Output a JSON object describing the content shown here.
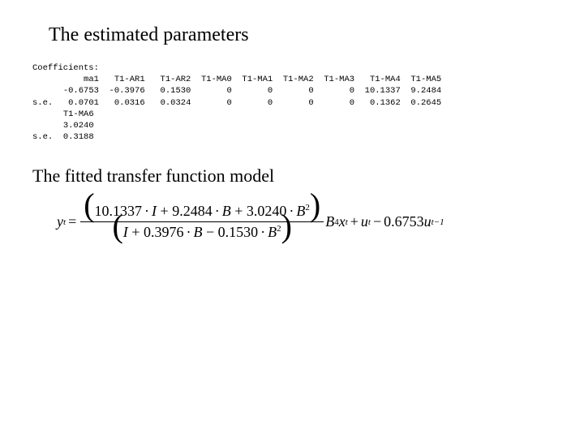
{
  "title": "The estimated parameters",
  "coef": {
    "label": "Coefficients:",
    "headers": [
      "ma1",
      "T1-AR1",
      "T1-AR2",
      "T1-MA0",
      "T1-MA1",
      "T1-MA2",
      "T1-MA3",
      "T1-MA4",
      "T1-MA5"
    ],
    "row1_label": "",
    "row1": [
      "-0.6753",
      "-0.3976",
      "0.1530",
      "0",
      "0",
      "0",
      "0",
      "10.1337",
      "9.2484"
    ],
    "se_label": "s.e.",
    "row2": [
      "0.0701",
      "0.0316",
      "0.0324",
      "0",
      "0",
      "0",
      "0",
      "0.1362",
      "0.2645"
    ],
    "extra_header": "T1-MA6",
    "extra_val": "3.0240",
    "extra_se": "0.3188"
  },
  "subtitle": "The fitted transfer function model",
  "eq": {
    "lhs_var": "y",
    "lhs_sub": "t",
    "eqsign": "=",
    "num_c1": "10.1337",
    "num_I": "I",
    "num_plus1": "+",
    "num_c2": "9.2484",
    "num_B": "B",
    "num_plus2": "+",
    "num_c3": "3.0240",
    "num_B2": "B",
    "num_sup2": "2",
    "den_I": "I",
    "den_plus1": "+",
    "den_c1": "0.3976",
    "den_B": "B",
    "den_minus": "−",
    "den_c2": "0.1530",
    "den_B2": "B",
    "den_sup2": "2",
    "post_B": "B",
    "post_sup4": "4",
    "post_x": "x",
    "post_xsub": "t",
    "plus_u": "+",
    "u": "u",
    "usub": "t",
    "minus": "−",
    "tail_c": "0.6753",
    "tail_u": "u",
    "tail_sub": "t−1",
    "dot": "·"
  }
}
